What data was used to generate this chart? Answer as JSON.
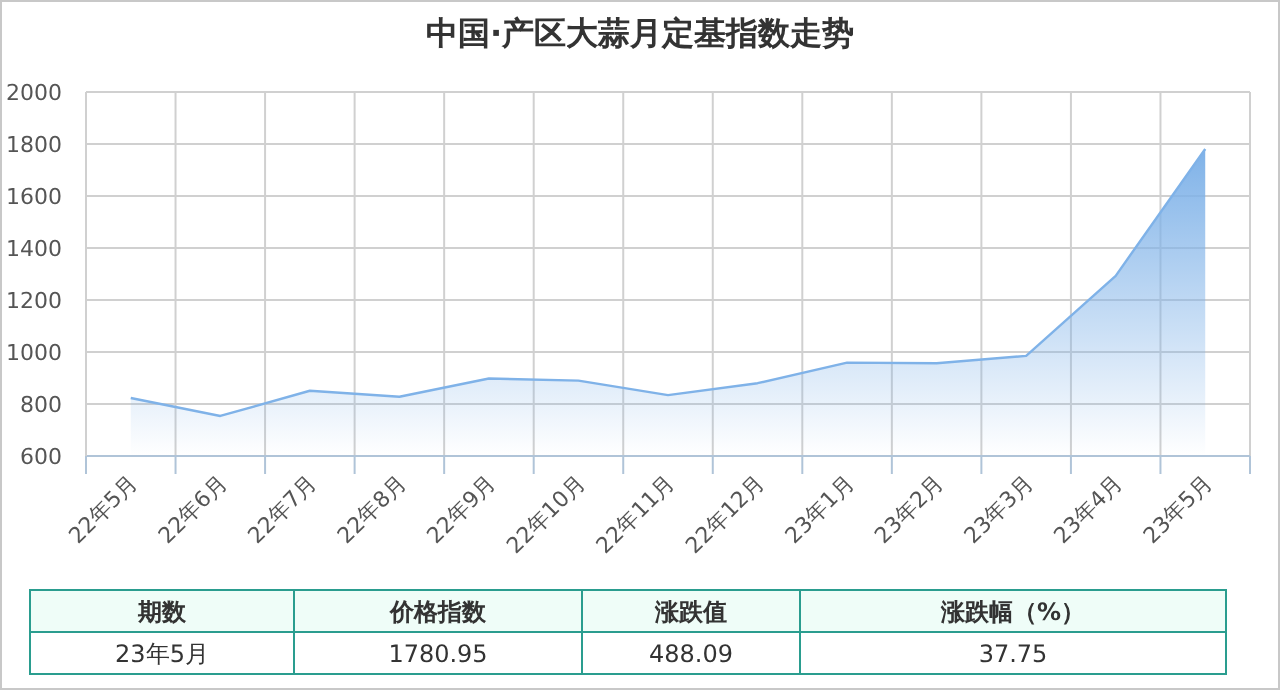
{
  "chart_data": {
    "type": "area",
    "title": "中国·产区大蒜月定基指数走势",
    "categories": [
      "22年5月",
      "22年6月",
      "22年7月",
      "22年8月",
      "22年9月",
      "22年10月",
      "22年11月",
      "22年12月",
      "23年1月",
      "23年2月",
      "23年3月",
      "23年4月",
      "23年5月"
    ],
    "values": [
      823,
      754,
      851,
      828,
      898,
      890,
      834,
      880,
      959,
      957,
      985,
      1293,
      1780.95
    ],
    "color": "#7fb2e8",
    "ylim": [
      600,
      2000
    ],
    "yticks": [
      600,
      800,
      1000,
      1200,
      1400,
      1600,
      1800,
      2000
    ],
    "grid": true,
    "annotations": [
      "期数",
      "价格指数",
      "涨跌值",
      "涨跌幅（%）",
      "23年5月",
      "1780.95",
      "488.09",
      "37.75"
    ]
  }
}
